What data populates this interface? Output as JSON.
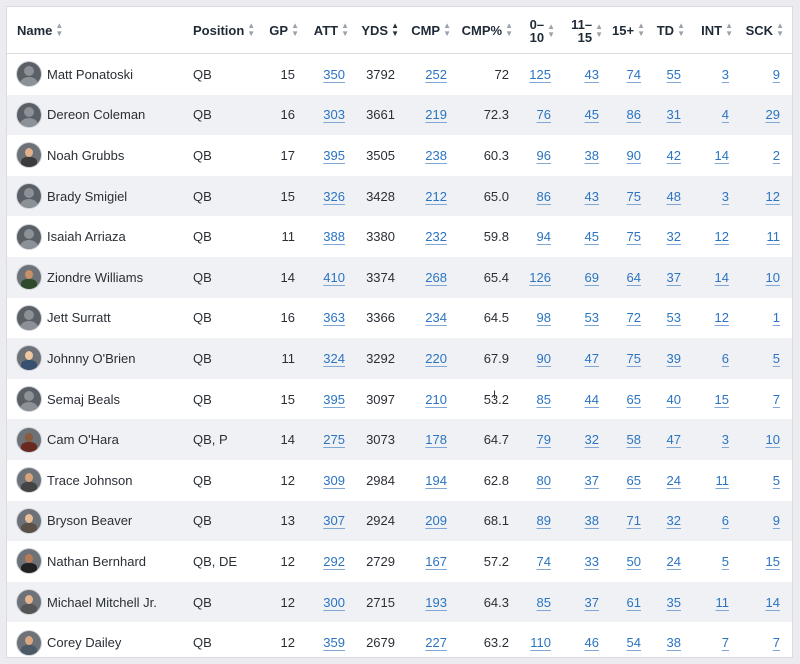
{
  "columns": [
    {
      "key": "name",
      "label": "Name"
    },
    {
      "key": "position",
      "label": "Position"
    },
    {
      "key": "gp",
      "label": "GP"
    },
    {
      "key": "att",
      "label": "ATT"
    },
    {
      "key": "yds",
      "label": "YDS"
    },
    {
      "key": "cmp",
      "label": "CMP"
    },
    {
      "key": "cmp_pct",
      "label": "CMP%"
    },
    {
      "key": "r0_10",
      "label_top": "0–",
      "label_bottom": "10"
    },
    {
      "key": "r11_15",
      "label_top": "11–",
      "label_bottom": "15"
    },
    {
      "key": "r15p",
      "label": "15+"
    },
    {
      "key": "td",
      "label": "TD"
    },
    {
      "key": "int",
      "label": "INT"
    },
    {
      "key": "sck",
      "label": "SCK"
    }
  ],
  "sort": {
    "column": "YDS",
    "direction": "descending"
  },
  "rows": [
    {
      "name": "Matt Ponatoski",
      "position": "QB",
      "gp": "15",
      "att": "350",
      "yds": "3792",
      "cmp": "252",
      "cmp_pct": "72",
      "r0_10": "125",
      "r11_15": "43",
      "r15p": "74",
      "td": "55",
      "int": "3",
      "sck": "9",
      "avatar": "default"
    },
    {
      "name": "Dereon Coleman",
      "position": "QB",
      "gp": "16",
      "att": "303",
      "yds": "3661",
      "cmp": "219",
      "cmp_pct": "72.3",
      "r0_10": "76",
      "r11_15": "45",
      "r15p": "86",
      "td": "31",
      "int": "4",
      "sck": "29",
      "avatar": "default"
    },
    {
      "name": "Noah Grubbs",
      "position": "QB",
      "gp": "17",
      "att": "395",
      "yds": "3505",
      "cmp": "238",
      "cmp_pct": "60.3",
      "r0_10": "96",
      "r11_15": "38",
      "r15p": "90",
      "td": "42",
      "int": "14",
      "sck": "2",
      "avatar": "photo"
    },
    {
      "name": "Brady Smigiel",
      "position": "QB",
      "gp": "15",
      "att": "326",
      "yds": "3428",
      "cmp": "212",
      "cmp_pct": "65.0",
      "r0_10": "86",
      "r11_15": "43",
      "r15p": "75",
      "td": "48",
      "int": "3",
      "sck": "12",
      "avatar": "default"
    },
    {
      "name": "Isaiah Arriaza",
      "position": "QB",
      "gp": "11",
      "att": "388",
      "yds": "3380",
      "cmp": "232",
      "cmp_pct": "59.8",
      "r0_10": "94",
      "r11_15": "45",
      "r15p": "75",
      "td": "32",
      "int": "12",
      "sck": "11",
      "avatar": "default"
    },
    {
      "name": "Ziondre Williams",
      "position": "QB",
      "gp": "14",
      "att": "410",
      "yds": "3374",
      "cmp": "268",
      "cmp_pct": "65.4",
      "r0_10": "126",
      "r11_15": "69",
      "r15p": "64",
      "td": "37",
      "int": "14",
      "sck": "10",
      "avatar": "photo"
    },
    {
      "name": "Jett Surratt",
      "position": "QB",
      "gp": "16",
      "att": "363",
      "yds": "3366",
      "cmp": "234",
      "cmp_pct": "64.5",
      "r0_10": "98",
      "r11_15": "53",
      "r15p": "72",
      "td": "53",
      "int": "12",
      "sck": "1",
      "avatar": "default"
    },
    {
      "name": "Johnny O'Brien",
      "position": "QB",
      "gp": "11",
      "att": "324",
      "yds": "3292",
      "cmp": "220",
      "cmp_pct": "67.9",
      "r0_10": "90",
      "r11_15": "47",
      "r15p": "75",
      "td": "39",
      "int": "6",
      "sck": "5",
      "avatar": "photo"
    },
    {
      "name": "Semaj Beals",
      "position": "QB",
      "gp": "15",
      "att": "395",
      "yds": "3097",
      "cmp": "210",
      "cmp_pct": "53.2",
      "r0_10": "85",
      "r11_15": "44",
      "r15p": "65",
      "td": "40",
      "int": "15",
      "sck": "7",
      "avatar": "default"
    },
    {
      "name": "Cam O'Hara",
      "position": "QB, P",
      "gp": "14",
      "att": "275",
      "yds": "3073",
      "cmp": "178",
      "cmp_pct": "64.7",
      "r0_10": "79",
      "r11_15": "32",
      "r15p": "58",
      "td": "47",
      "int": "3",
      "sck": "10",
      "avatar": "photo"
    },
    {
      "name": "Trace Johnson",
      "position": "QB",
      "gp": "12",
      "att": "309",
      "yds": "2984",
      "cmp": "194",
      "cmp_pct": "62.8",
      "r0_10": "80",
      "r11_15": "37",
      "r15p": "65",
      "td": "24",
      "int": "11",
      "sck": "5",
      "avatar": "photo"
    },
    {
      "name": "Bryson Beaver",
      "position": "QB",
      "gp": "13",
      "att": "307",
      "yds": "2924",
      "cmp": "209",
      "cmp_pct": "68.1",
      "r0_10": "89",
      "r11_15": "38",
      "r15p": "71",
      "td": "32",
      "int": "6",
      "sck": "9",
      "avatar": "photo"
    },
    {
      "name": "Nathan Bernhard",
      "position": "QB, DE",
      "gp": "12",
      "att": "292",
      "yds": "2729",
      "cmp": "167",
      "cmp_pct": "57.2",
      "r0_10": "74",
      "r11_15": "33",
      "r15p": "50",
      "td": "24",
      "int": "5",
      "sck": "15",
      "avatar": "photo"
    },
    {
      "name": "Michael Mitchell Jr.",
      "position": "QB",
      "gp": "12",
      "att": "300",
      "yds": "2715",
      "cmp": "193",
      "cmp_pct": "64.3",
      "r0_10": "85",
      "r11_15": "37",
      "r15p": "61",
      "td": "35",
      "int": "11",
      "sck": "14",
      "avatar": "photo"
    },
    {
      "name": "Corey Dailey",
      "position": "QB",
      "gp": "12",
      "att": "359",
      "yds": "2679",
      "cmp": "227",
      "cmp_pct": "63.2",
      "r0_10": "110",
      "r11_15": "46",
      "r15p": "54",
      "td": "38",
      "int": "7",
      "sck": "7",
      "avatar": "photo"
    }
  ],
  "colors": {
    "link": "#2a74c2",
    "stripe": "#f0f1f4",
    "header_text": "#1f2a37"
  }
}
